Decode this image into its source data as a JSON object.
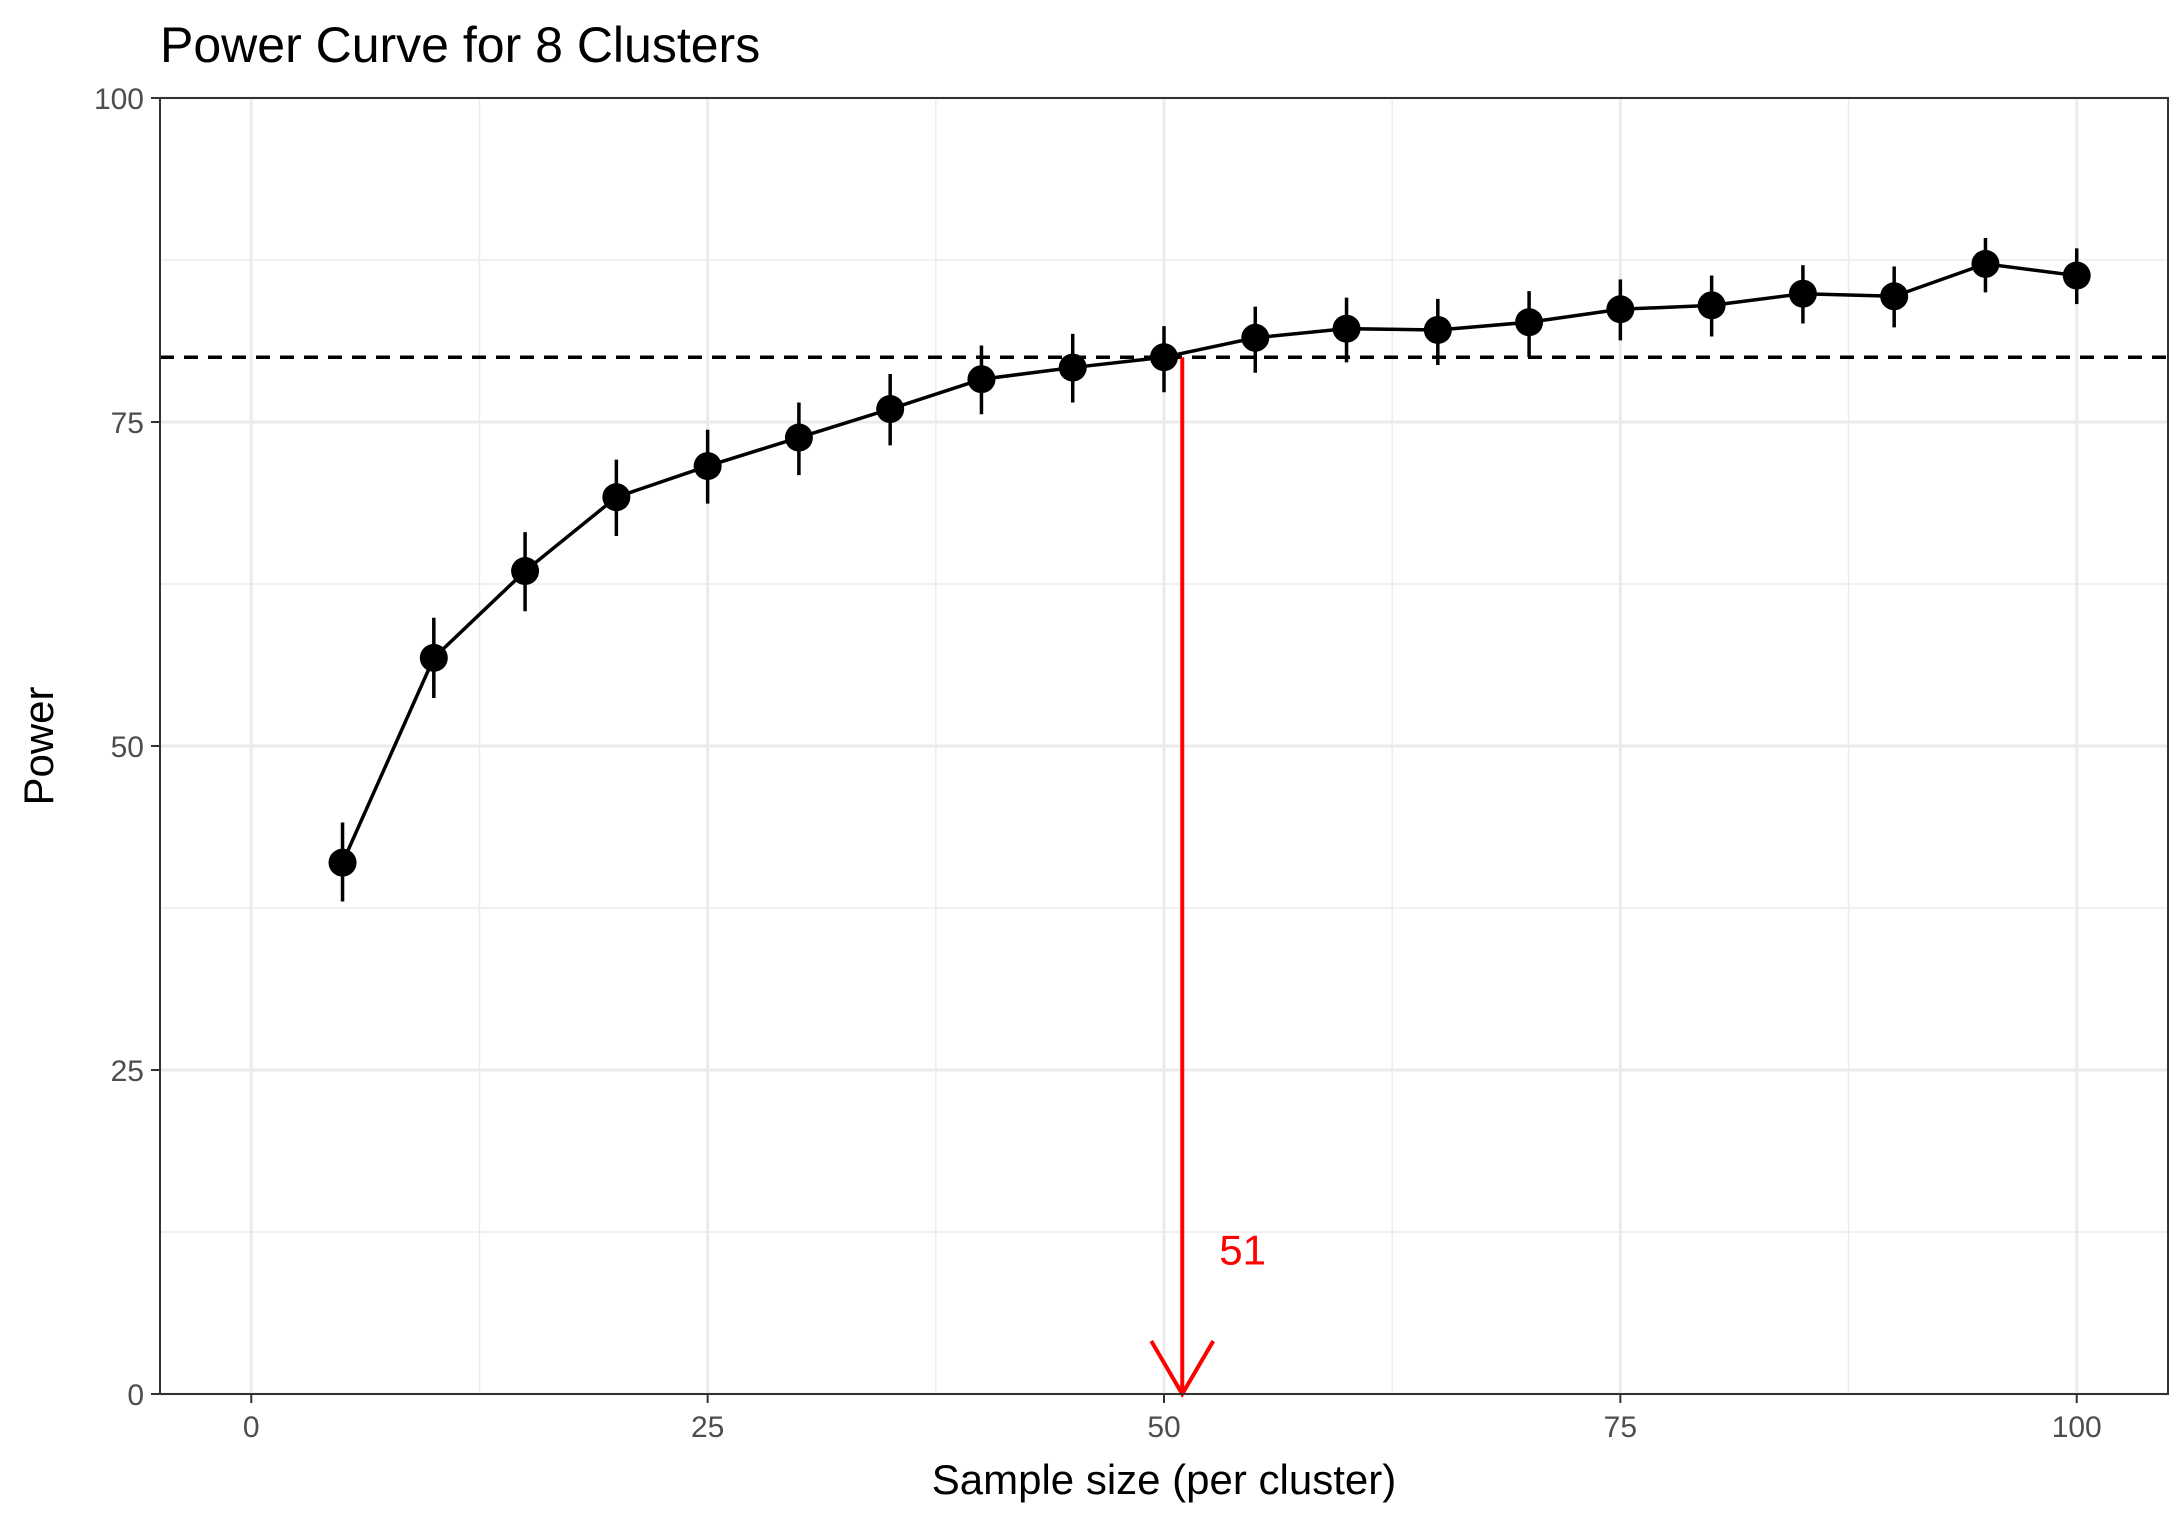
{
  "chart_data": {
    "type": "line",
    "title": "Power Curve for 8 Clusters",
    "xlabel": "Sample size (per cluster)",
    "ylabel": "Power",
    "xlim": [
      -5,
      105
    ],
    "ylim": [
      0,
      100
    ],
    "x_ticks": [
      0,
      25,
      50,
      75,
      100
    ],
    "y_ticks": [
      0,
      25,
      50,
      75,
      100
    ],
    "grid": true,
    "series": [
      {
        "x": [
          5,
          10,
          15,
          20,
          25,
          30,
          35,
          40,
          45,
          50,
          55,
          60,
          65,
          70,
          75,
          80,
          85,
          90,
          95,
          100
        ],
        "values": [
          41.0,
          56.8,
          63.5,
          69.2,
          71.6,
          73.8,
          76.0,
          78.3,
          79.2,
          80.0,
          81.5,
          82.2,
          82.1,
          82.7,
          83.7,
          84.0,
          84.9,
          84.7,
          87.2,
          86.3
        ],
        "lower": [
          38.0,
          53.7,
          60.4,
          66.2,
          68.7,
          70.9,
          73.2,
          75.6,
          76.5,
          77.3,
          78.8,
          79.6,
          79.4,
          80.0,
          81.3,
          81.6,
          82.6,
          82.3,
          85.0,
          84.1
        ],
        "upper": [
          44.1,
          59.9,
          66.5,
          72.1,
          74.4,
          76.5,
          78.7,
          80.9,
          81.8,
          82.4,
          83.9,
          84.6,
          84.5,
          85.1,
          86.0,
          86.3,
          87.1,
          87.0,
          89.2,
          88.4
        ],
        "color": "#000000"
      }
    ],
    "reference_line": {
      "y": 80,
      "style": "dashed",
      "color": "#000000"
    },
    "annotation": {
      "x": 51,
      "from_y": 80,
      "to_y": 0,
      "label": "51",
      "color": "#ff0000"
    }
  }
}
